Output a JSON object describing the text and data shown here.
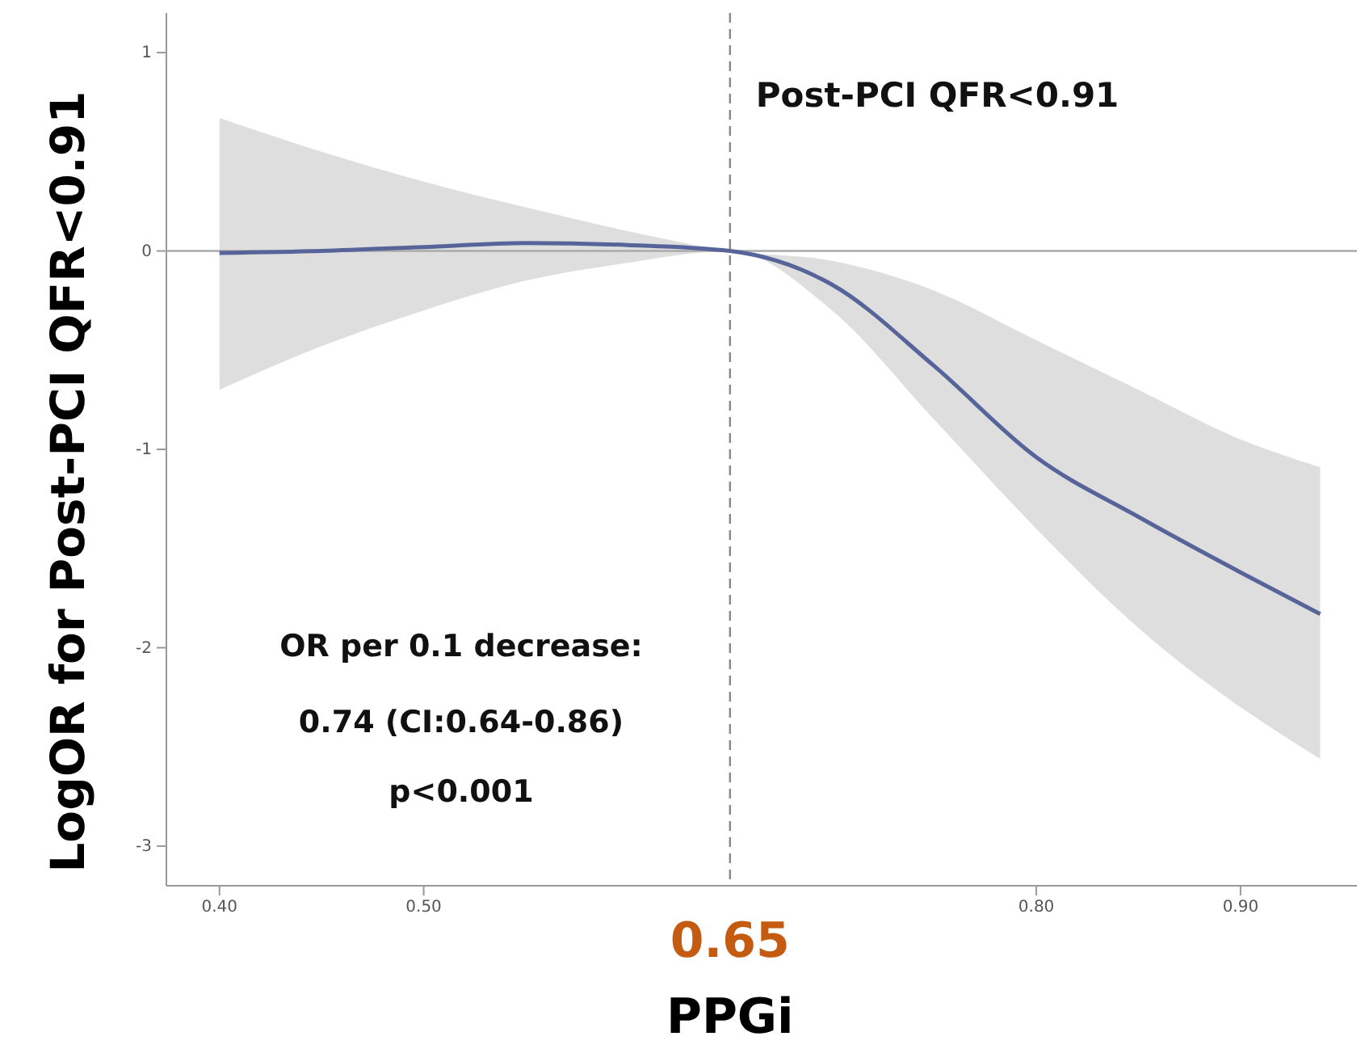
{
  "chart_data": {
    "type": "line",
    "xlabel": "PPGi",
    "ylabel": "LogOR for Post-PCI QFR<0.91",
    "x": [
      0.4,
      0.45,
      0.5,
      0.55,
      0.6,
      0.65,
      0.7,
      0.75,
      0.8,
      0.85,
      0.9,
      0.939
    ],
    "series": [
      {
        "color": "#56649a",
        "values": [
          -0.01,
          0.0,
          0.02,
          0.04,
          0.03,
          0.0,
          -0.17,
          -0.58,
          -1.04,
          -1.34,
          -1.62,
          -1.83
        ],
        "lower": [
          -0.7,
          -0.48,
          -0.3,
          -0.15,
          -0.06,
          0.0,
          -0.3,
          -0.85,
          -1.4,
          -1.9,
          -2.3,
          -2.56
        ],
        "upper": [
          0.67,
          0.5,
          0.35,
          0.22,
          0.1,
          0.0,
          -0.05,
          -0.2,
          -0.45,
          -0.7,
          -0.95,
          -1.09
        ]
      }
    ],
    "xlim": [
      0.374,
      0.957
    ],
    "ylim": [
      -3.2,
      1.2
    ],
    "xticks": [
      {
        "value": 0.4,
        "label": "0.40"
      },
      {
        "value": 0.5,
        "label": "0.50"
      },
      {
        "value": 0.8,
        "label": "0.80"
      },
      {
        "value": 0.9,
        "label": "0.90"
      }
    ],
    "yticks": [
      1,
      0,
      -1,
      -2,
      -3
    ],
    "ref_lines": [
      {
        "axis": "x",
        "value": 0.65,
        "label": "0.65",
        "color": "#888888",
        "line_style": "dashed"
      },
      {
        "axis": "y",
        "value": 0,
        "color": "#aaaaaa",
        "line_style": "solid"
      }
    ],
    "annotations": [
      "Post-PCI QFR<0.91",
      "OR per 0.1 decrease:",
      "0.74 (CI:0.64-0.86)",
      "p<0.001"
    ],
    "grid": false,
    "line_style": "solid"
  }
}
